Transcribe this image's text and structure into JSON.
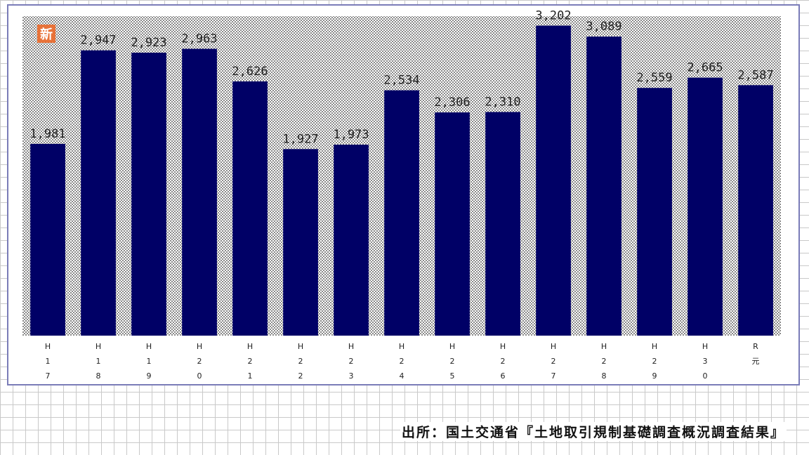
{
  "badge": "新",
  "source": "出所：国土交通省『土地取引規制基礎調査概況調査結果』",
  "colors": {
    "bar": "#000066",
    "plot_bg": "#d8d8d8",
    "badge": "#e8733a",
    "frame": "#7a7cb8"
  },
  "chart_data": {
    "type": "bar",
    "categories": [
      "H17",
      "H18",
      "H19",
      "H20",
      "H21",
      "H22",
      "H23",
      "H24",
      "H25",
      "H26",
      "H27",
      "H28",
      "H29",
      "H30",
      "R元"
    ],
    "values": [
      1981,
      2947,
      2923,
      2963,
      2626,
      1927,
      1973,
      2534,
      2306,
      2310,
      3202,
      3089,
      2559,
      2665,
      2587
    ],
    "value_labels": [
      "1,981",
      "2,947",
      "2,923",
      "2,963",
      "2,626",
      "1,927",
      "1,973",
      "2,534",
      "2,306",
      "2,310",
      "3,202",
      "3,089",
      "2,559",
      "2,665",
      "2,587"
    ],
    "title": "",
    "xlabel": "",
    "ylabel": "",
    "ylim": [
      0,
      3300
    ],
    "grid": false,
    "legend": "none"
  }
}
